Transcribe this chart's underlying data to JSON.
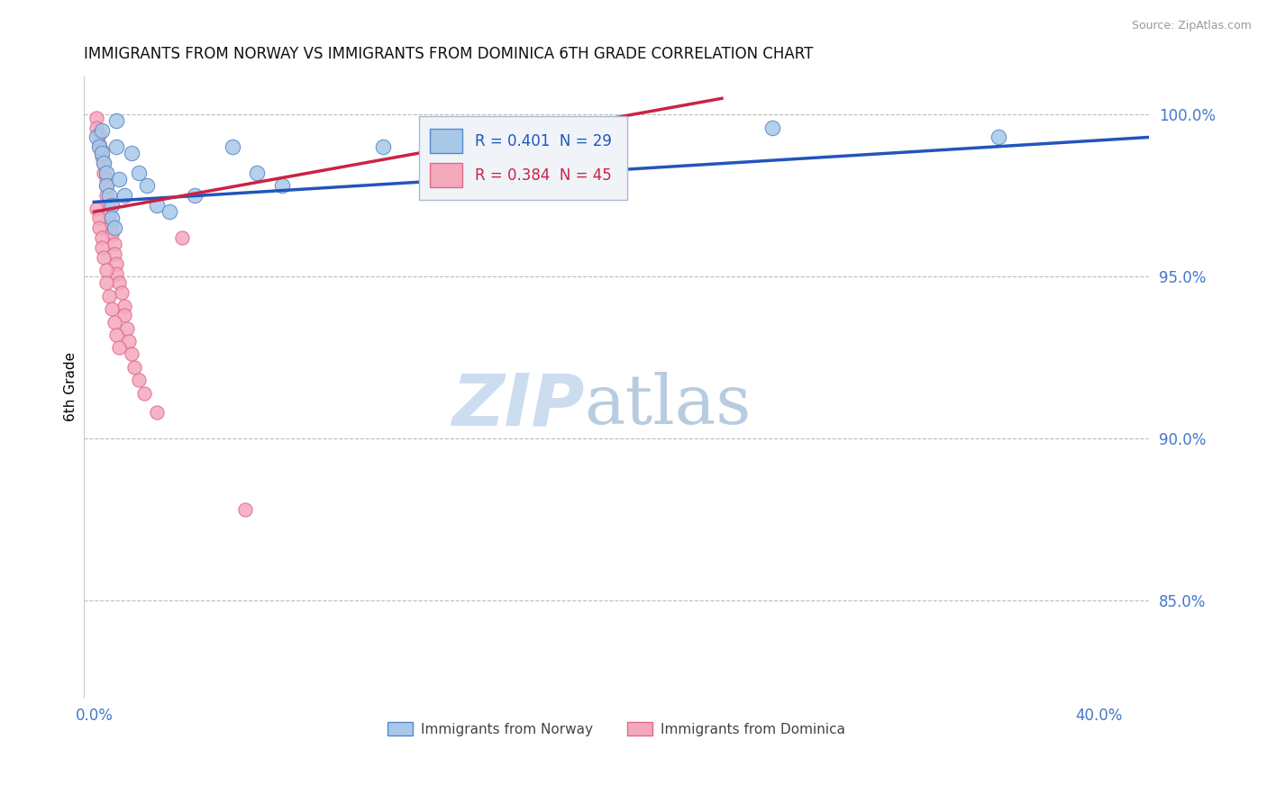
{
  "title": "IMMIGRANTS FROM NORWAY VS IMMIGRANTS FROM DOMINICA 6TH GRADE CORRELATION CHART",
  "source_text": "Source: ZipAtlas.com",
  "ylabel": "6th Grade",
  "ylim": [
    0.82,
    1.012
  ],
  "xlim": [
    -0.004,
    0.42
  ],
  "yticks": [
    0.85,
    0.9,
    0.95,
    1.0
  ],
  "ytick_labels": [
    "85.0%",
    "90.0%",
    "95.0%",
    "100.0%"
  ],
  "xtick_vals": [
    0.0,
    0.4
  ],
  "xtick_labels": [
    "0.0%",
    "40.0%"
  ],
  "norway_fill": "#a8c8e8",
  "norway_edge": "#5588cc",
  "dominica_fill": "#f4a8bc",
  "dominica_edge": "#e06888",
  "norway_line_color": "#2255bb",
  "dominica_line_color": "#cc2244",
  "R_norway": 0.401,
  "N_norway": 29,
  "R_dominica": 0.384,
  "N_dominica": 45,
  "norway_x": [
    0.001,
    0.002,
    0.003,
    0.003,
    0.004,
    0.005,
    0.005,
    0.006,
    0.007,
    0.007,
    0.008,
    0.009,
    0.009,
    0.01,
    0.012,
    0.015,
    0.018,
    0.021,
    0.025,
    0.03,
    0.04,
    0.055,
    0.065,
    0.075,
    0.115,
    0.16,
    0.2,
    0.27,
    0.36
  ],
  "norway_y": [
    0.993,
    0.99,
    0.995,
    0.988,
    0.985,
    0.982,
    0.978,
    0.975,
    0.972,
    0.968,
    0.965,
    0.99,
    0.998,
    0.98,
    0.975,
    0.988,
    0.982,
    0.978,
    0.972,
    0.97,
    0.975,
    0.99,
    0.982,
    0.978,
    0.99,
    0.988,
    0.992,
    0.996,
    0.993
  ],
  "dominica_x": [
    0.001,
    0.001,
    0.002,
    0.002,
    0.003,
    0.003,
    0.004,
    0.004,
    0.005,
    0.005,
    0.005,
    0.006,
    0.006,
    0.007,
    0.007,
    0.008,
    0.008,
    0.009,
    0.009,
    0.01,
    0.011,
    0.012,
    0.012,
    0.013,
    0.014,
    0.015,
    0.016,
    0.018,
    0.02,
    0.025,
    0.001,
    0.002,
    0.002,
    0.003,
    0.003,
    0.004,
    0.005,
    0.005,
    0.006,
    0.007,
    0.008,
    0.009,
    0.01,
    0.035,
    0.06
  ],
  "dominica_y": [
    0.999,
    0.996,
    0.994,
    0.991,
    0.989,
    0.987,
    0.985,
    0.982,
    0.98,
    0.978,
    0.975,
    0.972,
    0.969,
    0.966,
    0.963,
    0.96,
    0.957,
    0.954,
    0.951,
    0.948,
    0.945,
    0.941,
    0.938,
    0.934,
    0.93,
    0.926,
    0.922,
    0.918,
    0.914,
    0.908,
    0.971,
    0.968,
    0.965,
    0.962,
    0.959,
    0.956,
    0.952,
    0.948,
    0.944,
    0.94,
    0.936,
    0.932,
    0.928,
    0.962,
    0.878
  ],
  "norway_trend_x": [
    0.0,
    0.42
  ],
  "norway_trend_y": [
    0.973,
    0.993
  ],
  "dominica_trend_x": [
    0.0,
    0.25
  ],
  "dominica_trend_y": [
    0.97,
    1.005
  ],
  "watermark_zip": "ZIP",
  "watermark_atlas": "atlas",
  "watermark_color": "#ccddf0",
  "background_color": "#ffffff",
  "grid_color": "#bbbbbb",
  "tick_color": "#4477cc",
  "title_color": "#111111",
  "legend_bg": "#e8f0f8",
  "legend_border": "#bbccdd"
}
